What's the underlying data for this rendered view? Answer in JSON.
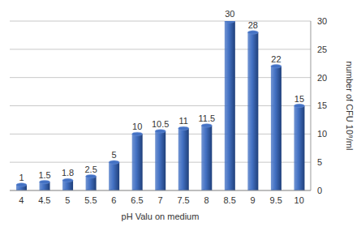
{
  "chart_data": {
    "type": "bar",
    "x_label": "pH Valu on medium",
    "y_label": "number of CFU 10⁸/ml",
    "categories": [
      "4",
      "4.5",
      "5",
      "5.5",
      "6",
      "6.5",
      "7",
      "7.5",
      "8",
      "8.5",
      "9",
      "9.5",
      "10"
    ],
    "values": [
      1,
      1.5,
      1.8,
      2.5,
      5,
      10,
      10.5,
      11,
      11.5,
      30,
      28,
      22,
      15
    ],
    "color": "#4472c4",
    "ylim": [
      0,
      30
    ],
    "yticks": [
      0,
      5,
      10,
      15,
      20,
      25,
      30
    ],
    "grid": true,
    "data_labels": true
  }
}
